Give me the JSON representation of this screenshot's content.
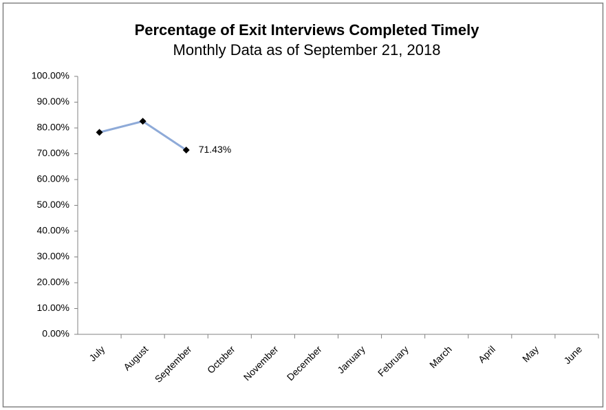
{
  "chart_data": {
    "type": "line",
    "title": "Percentage of Exit Interviews Completed Timely",
    "subtitle": "Monthly Data as of September 21, 2018",
    "categories": [
      "July",
      "August",
      "September",
      "October",
      "November",
      "December",
      "January",
      "February",
      "March",
      "April",
      "May",
      "June"
    ],
    "series": [
      {
        "name": "Percentage",
        "color": "#8eaad8",
        "marker_color": "#000000",
        "values": [
          78.3,
          82.6,
          71.43,
          null,
          null,
          null,
          null,
          null,
          null,
          null,
          null,
          null
        ],
        "value_labels": [
          null,
          null,
          "71.43%",
          null,
          null,
          null,
          null,
          null,
          null,
          null,
          null,
          null
        ]
      }
    ],
    "ylim": [
      0,
      100
    ],
    "yticks": [
      {
        "value": 0,
        "label": "0.00%"
      },
      {
        "value": 10,
        "label": "10.00%"
      },
      {
        "value": 20,
        "label": "20.00%"
      },
      {
        "value": 30,
        "label": "30.00%"
      },
      {
        "value": 40,
        "label": "40.00%"
      },
      {
        "value": 50,
        "label": "50.00%"
      },
      {
        "value": 60,
        "label": "60.00%"
      },
      {
        "value": 70,
        "label": "70.00%"
      },
      {
        "value": 80,
        "label": "80.00%"
      },
      {
        "value": 90,
        "label": "90.00%"
      },
      {
        "value": 100,
        "label": "100.00%"
      }
    ],
    "grid": false
  }
}
